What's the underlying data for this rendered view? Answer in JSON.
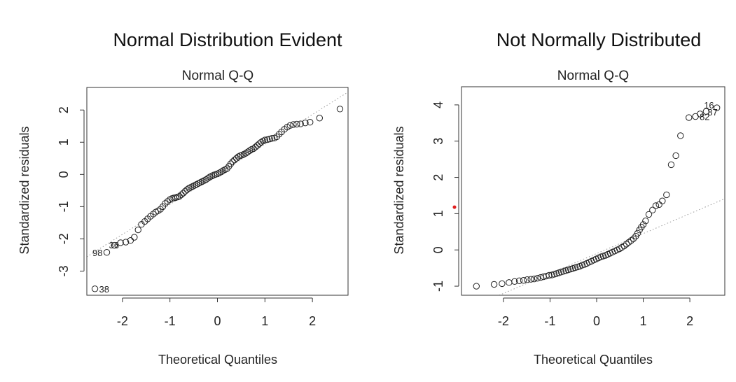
{
  "panels": [
    {
      "heading": "Normal Distribution Evident",
      "chart": {
        "type": "scatter",
        "title": "Normal Q-Q",
        "xlabel": "Theoretical Quantiles",
        "ylabel": "Standardized residuals",
        "xlim": [
          -2.75,
          2.75
        ],
        "ylim": [
          -3.75,
          2.7
        ],
        "xticks": [
          -2,
          -1,
          0,
          1,
          2
        ],
        "yticks": [
          -3,
          -2,
          -1,
          0,
          1,
          2
        ],
        "reference_line": {
          "slope": 0.93,
          "intercept": 0.0
        },
        "points": [
          [
            -2.58,
            -3.55
          ],
          [
            -2.33,
            -2.42
          ],
          [
            -2.17,
            -2.2
          ],
          [
            -2.04,
            -2.12
          ],
          [
            -1.93,
            -2.1
          ],
          [
            -1.83,
            -2.05
          ],
          [
            -1.75,
            -1.95
          ],
          [
            -1.67,
            -1.72
          ],
          [
            -1.6,
            -1.55
          ],
          [
            -1.53,
            -1.46
          ],
          [
            -1.47,
            -1.38
          ],
          [
            -1.41,
            -1.3
          ],
          [
            -1.35,
            -1.23
          ],
          [
            -1.3,
            -1.17
          ],
          [
            -1.25,
            -1.13
          ],
          [
            -1.2,
            -1.08
          ],
          [
            -1.15,
            -1.0
          ],
          [
            -1.1,
            -0.9
          ],
          [
            -1.05,
            -0.84
          ],
          [
            -1.0,
            -0.78
          ],
          [
            -0.96,
            -0.75
          ],
          [
            -0.92,
            -0.73
          ],
          [
            -0.88,
            -0.72
          ],
          [
            -0.84,
            -0.7
          ],
          [
            -0.8,
            -0.68
          ],
          [
            -0.76,
            -0.63
          ],
          [
            -0.72,
            -0.58
          ],
          [
            -0.68,
            -0.52
          ],
          [
            -0.64,
            -0.47
          ],
          [
            -0.6,
            -0.43
          ],
          [
            -0.56,
            -0.4
          ],
          [
            -0.52,
            -0.37
          ],
          [
            -0.48,
            -0.34
          ],
          [
            -0.44,
            -0.31
          ],
          [
            -0.4,
            -0.28
          ],
          [
            -0.36,
            -0.25
          ],
          [
            -0.32,
            -0.22
          ],
          [
            -0.28,
            -0.19
          ],
          [
            -0.24,
            -0.16
          ],
          [
            -0.2,
            -0.12
          ],
          [
            -0.16,
            -0.08
          ],
          [
            -0.12,
            -0.05
          ],
          [
            -0.08,
            -0.02
          ],
          [
            -0.04,
            0.0
          ],
          [
            0.0,
            0.02
          ],
          [
            0.04,
            0.05
          ],
          [
            0.08,
            0.08
          ],
          [
            0.12,
            0.12
          ],
          [
            0.16,
            0.15
          ],
          [
            0.2,
            0.18
          ],
          [
            0.24,
            0.25
          ],
          [
            0.28,
            0.33
          ],
          [
            0.32,
            0.4
          ],
          [
            0.36,
            0.45
          ],
          [
            0.4,
            0.5
          ],
          [
            0.44,
            0.55
          ],
          [
            0.48,
            0.58
          ],
          [
            0.52,
            0.6
          ],
          [
            0.56,
            0.63
          ],
          [
            0.6,
            0.66
          ],
          [
            0.64,
            0.7
          ],
          [
            0.68,
            0.74
          ],
          [
            0.72,
            0.78
          ],
          [
            0.76,
            0.8
          ],
          [
            0.8,
            0.85
          ],
          [
            0.84,
            0.9
          ],
          [
            0.88,
            0.95
          ],
          [
            0.92,
            1.0
          ],
          [
            0.96,
            1.04
          ],
          [
            1.0,
            1.07
          ],
          [
            1.05,
            1.08
          ],
          [
            1.1,
            1.1
          ],
          [
            1.15,
            1.12
          ],
          [
            1.2,
            1.13
          ],
          [
            1.25,
            1.17
          ],
          [
            1.3,
            1.25
          ],
          [
            1.35,
            1.32
          ],
          [
            1.41,
            1.4
          ],
          [
            1.47,
            1.47
          ],
          [
            1.53,
            1.52
          ],
          [
            1.6,
            1.55
          ],
          [
            1.67,
            1.56
          ],
          [
            1.75,
            1.57
          ],
          [
            1.85,
            1.6
          ],
          [
            1.95,
            1.62
          ],
          [
            2.15,
            1.75
          ],
          [
            2.58,
            2.03
          ]
        ],
        "point_labels": [
          {
            "text": "38",
            "x": -2.58,
            "y": -3.55,
            "side": "right"
          },
          {
            "text": "98",
            "x": -2.33,
            "y": -2.42,
            "side": "left"
          },
          {
            "text": "36",
            "x": -2.33,
            "y": -2.42,
            "side": "above-right"
          }
        ]
      }
    },
    {
      "heading": "Not Normally Distributed",
      "chart": {
        "type": "scatter",
        "title": "Normal Q-Q",
        "xlabel": "Theoretical Quantiles",
        "ylabel": "Standardized residuals",
        "xlim": [
          -2.9,
          2.75
        ],
        "ylim": [
          -1.25,
          4.5
        ],
        "xticks": [
          -2,
          -1,
          0,
          1,
          2
        ],
        "yticks": [
          -1,
          0,
          1,
          2,
          3,
          4
        ],
        "reference_line": {
          "slope": 0.55,
          "intercept": -0.1
        },
        "points": [
          [
            -2.58,
            -1.0
          ],
          [
            -2.2,
            -0.95
          ],
          [
            -2.03,
            -0.93
          ],
          [
            -1.88,
            -0.9
          ],
          [
            -1.76,
            -0.87
          ],
          [
            -1.66,
            -0.85
          ],
          [
            -1.57,
            -0.84
          ],
          [
            -1.49,
            -0.82
          ],
          [
            -1.41,
            -0.81
          ],
          [
            -1.34,
            -0.8
          ],
          [
            -1.27,
            -0.78
          ],
          [
            -1.2,
            -0.76
          ],
          [
            -1.14,
            -0.74
          ],
          [
            -1.08,
            -0.72
          ],
          [
            -1.02,
            -0.7
          ],
          [
            -0.96,
            -0.69
          ],
          [
            -0.91,
            -0.67
          ],
          [
            -0.86,
            -0.65
          ],
          [
            -0.81,
            -0.63
          ],
          [
            -0.76,
            -0.61
          ],
          [
            -0.71,
            -0.59
          ],
          [
            -0.66,
            -0.57
          ],
          [
            -0.61,
            -0.55
          ],
          [
            -0.56,
            -0.53
          ],
          [
            -0.51,
            -0.51
          ],
          [
            -0.46,
            -0.49
          ],
          [
            -0.41,
            -0.47
          ],
          [
            -0.36,
            -0.45
          ],
          [
            -0.31,
            -0.42
          ],
          [
            -0.26,
            -0.4
          ],
          [
            -0.21,
            -0.37
          ],
          [
            -0.16,
            -0.34
          ],
          [
            -0.11,
            -0.31
          ],
          [
            -0.06,
            -0.28
          ],
          [
            -0.01,
            -0.25
          ],
          [
            0.04,
            -0.22
          ],
          [
            0.09,
            -0.19
          ],
          [
            0.14,
            -0.17
          ],
          [
            0.19,
            -0.15
          ],
          [
            0.24,
            -0.12
          ],
          [
            0.29,
            -0.09
          ],
          [
            0.34,
            -0.06
          ],
          [
            0.39,
            -0.03
          ],
          [
            0.44,
            0.0
          ],
          [
            0.49,
            0.03
          ],
          [
            0.54,
            0.07
          ],
          [
            0.59,
            0.11
          ],
          [
            0.64,
            0.16
          ],
          [
            0.69,
            0.21
          ],
          [
            0.74,
            0.26
          ],
          [
            0.79,
            0.31
          ],
          [
            0.84,
            0.38
          ],
          [
            0.88,
            0.46
          ],
          [
            0.92,
            0.55
          ],
          [
            0.96,
            0.63
          ],
          [
            1.0,
            0.7
          ],
          [
            1.05,
            0.8
          ],
          [
            1.12,
            0.98
          ],
          [
            1.2,
            1.1
          ],
          [
            1.27,
            1.22
          ],
          [
            1.34,
            1.25
          ],
          [
            1.41,
            1.35
          ],
          [
            1.5,
            1.52
          ],
          [
            1.6,
            2.35
          ],
          [
            1.7,
            2.6
          ],
          [
            1.8,
            3.15
          ],
          [
            1.98,
            3.65
          ],
          [
            2.12,
            3.68
          ],
          [
            2.22,
            3.75
          ],
          [
            2.35,
            3.82
          ],
          [
            2.58,
            3.92
          ]
        ],
        "point_labels": [
          {
            "text": "16",
            "x": 2.58,
            "y": 3.92,
            "side": "left-up"
          },
          {
            "text": "87",
            "x": 2.35,
            "y": 3.82,
            "side": "right-down"
          },
          {
            "text": "82",
            "x": 2.12,
            "y": 3.68,
            "side": "right"
          }
        ],
        "marker": {
          "x": -2.9,
          "y": 1.18,
          "color": "#e02020"
        }
      }
    }
  ]
}
